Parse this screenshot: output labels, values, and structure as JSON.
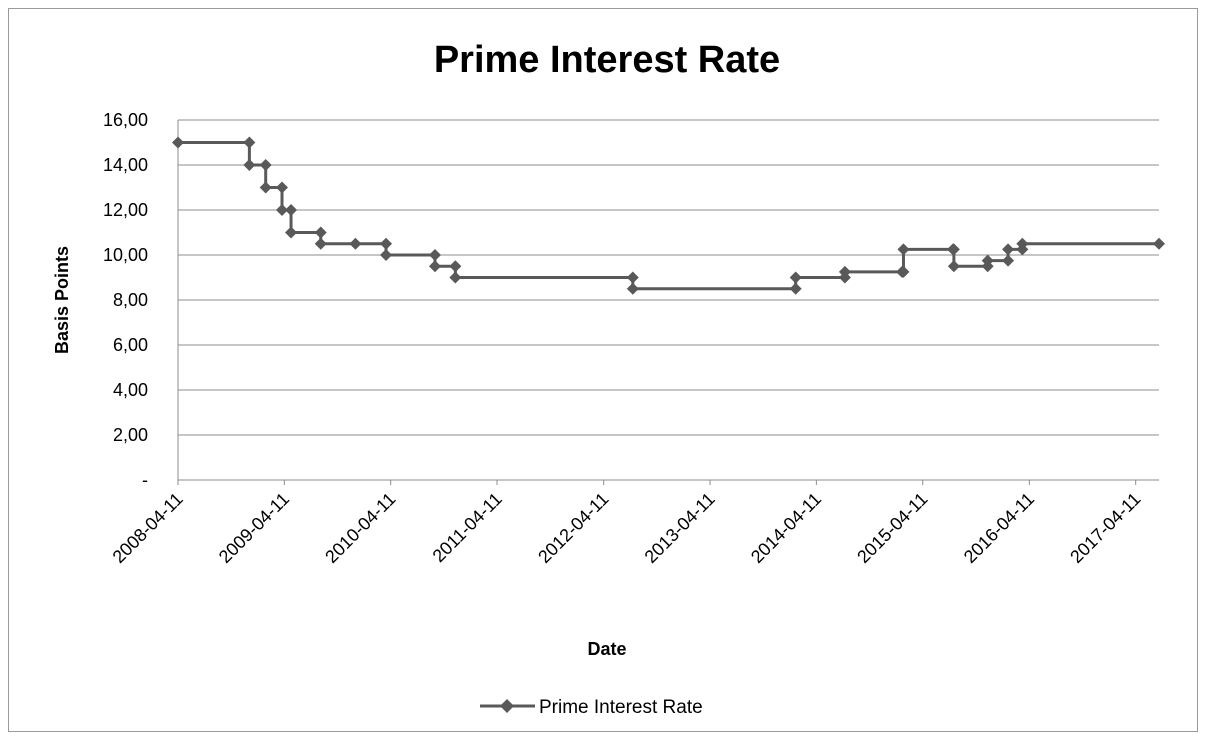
{
  "chart_data": {
    "type": "line",
    "title": "Prime Interest Rate",
    "xlabel": "Date",
    "ylabel": "Basis Points",
    "ylim": [
      0,
      16
    ],
    "ytick_labels": [
      "-",
      "2,00",
      "4,00",
      "6,00",
      "8,00",
      "10,00",
      "12,00",
      "14,00",
      "16,00"
    ],
    "xlim": [
      "2008-04-11",
      "2017-06-30"
    ],
    "xtick_labels": [
      "2008-04-11",
      "2009-04-11",
      "2010-04-11",
      "2011-04-11",
      "2012-04-11",
      "2013-04-11",
      "2014-04-11",
      "2015-04-11",
      "2016-04-11",
      "2017-04-11"
    ],
    "grid": "horizontal",
    "legend_position": "bottom",
    "step": true,
    "marker": "diamond",
    "line_color": "#595959",
    "series": [
      {
        "name": "Prime Interest Rate",
        "points": [
          {
            "x": "2008-04-11",
            "y": 15.0
          },
          {
            "x": "2008-12-12",
            "y": 14.0
          },
          {
            "x": "2009-02-06",
            "y": 13.0
          },
          {
            "x": "2009-04-03",
            "y": 12.0
          },
          {
            "x": "2009-05-04",
            "y": 11.0
          },
          {
            "x": "2009-08-14",
            "y": 10.5
          },
          {
            "x": "2009-12-11",
            "y": 10.5
          },
          {
            "x": "2010-03-26",
            "y": 10.0
          },
          {
            "x": "2010-09-10",
            "y": 9.5
          },
          {
            "x": "2010-11-19",
            "y": 9.0
          },
          {
            "x": "2012-07-20",
            "y": 8.5
          },
          {
            "x": "2014-01-30",
            "y": 9.0
          },
          {
            "x": "2014-07-18",
            "y": 9.25
          },
          {
            "x": "2015-01-30",
            "y": 9.25
          },
          {
            "x": "2015-02-04",
            "y": 10.25
          },
          {
            "x": "2015-07-24",
            "y": 10.25
          },
          {
            "x": "2015-07-27",
            "y": 9.5
          },
          {
            "x": "2015-11-20",
            "y": 9.75
          },
          {
            "x": "2016-01-29",
            "y": 10.25
          },
          {
            "x": "2016-03-18",
            "y": 10.5
          },
          {
            "x": "2017-06-30",
            "y": 10.5
          }
        ]
      }
    ]
  }
}
